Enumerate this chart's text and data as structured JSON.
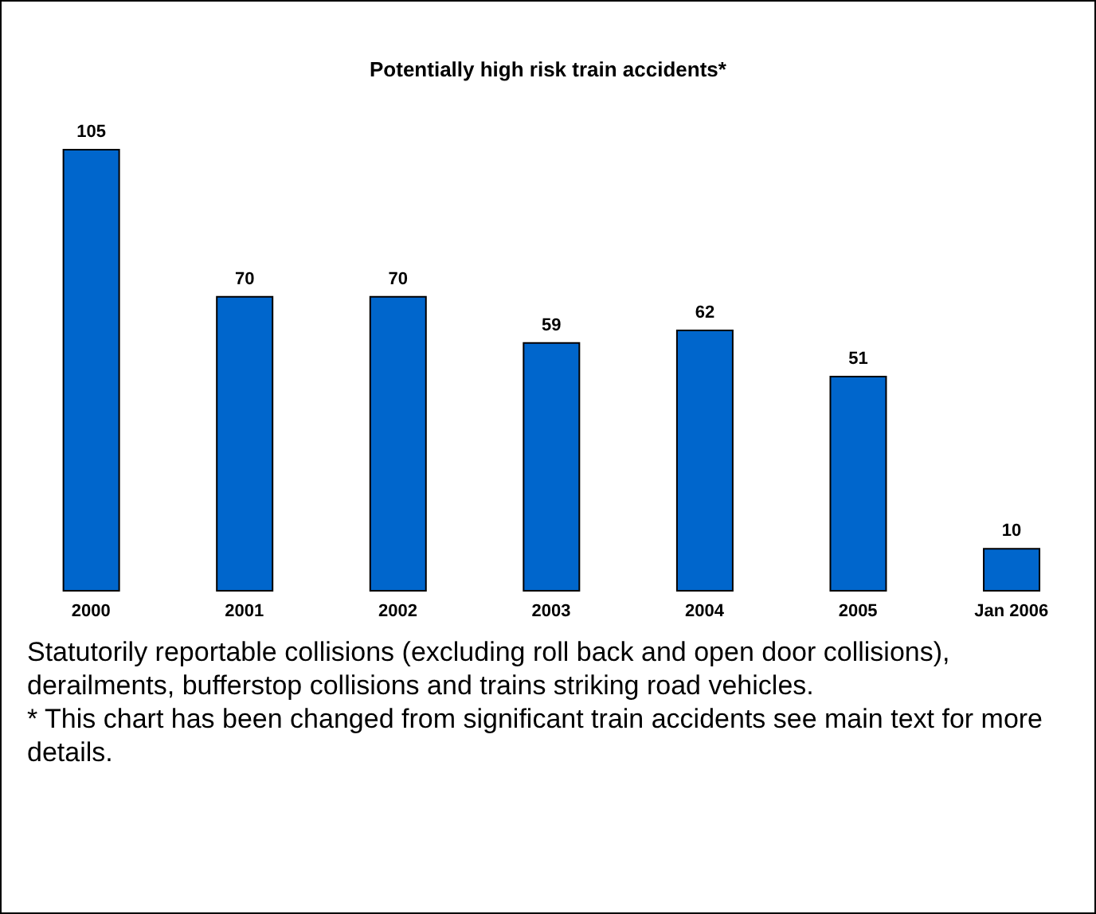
{
  "chart_data": {
    "type": "bar",
    "title": "Potentially high risk train accidents*",
    "categories": [
      "2000",
      "2001",
      "2002",
      "2003",
      "2004",
      "2005",
      "Jan 2006"
    ],
    "values": [
      105,
      70,
      70,
      59,
      62,
      51,
      10
    ],
    "color": "#0066cc",
    "data_labels": true,
    "grid": false,
    "legend": false,
    "annotations": [
      "Statutorily reportable collisions (excluding roll back and open door collisions), derailments, bufferstop collisions and trains striking road vehicles.",
      "* This chart has been changed from significant train accidents see main text for more details."
    ]
  }
}
